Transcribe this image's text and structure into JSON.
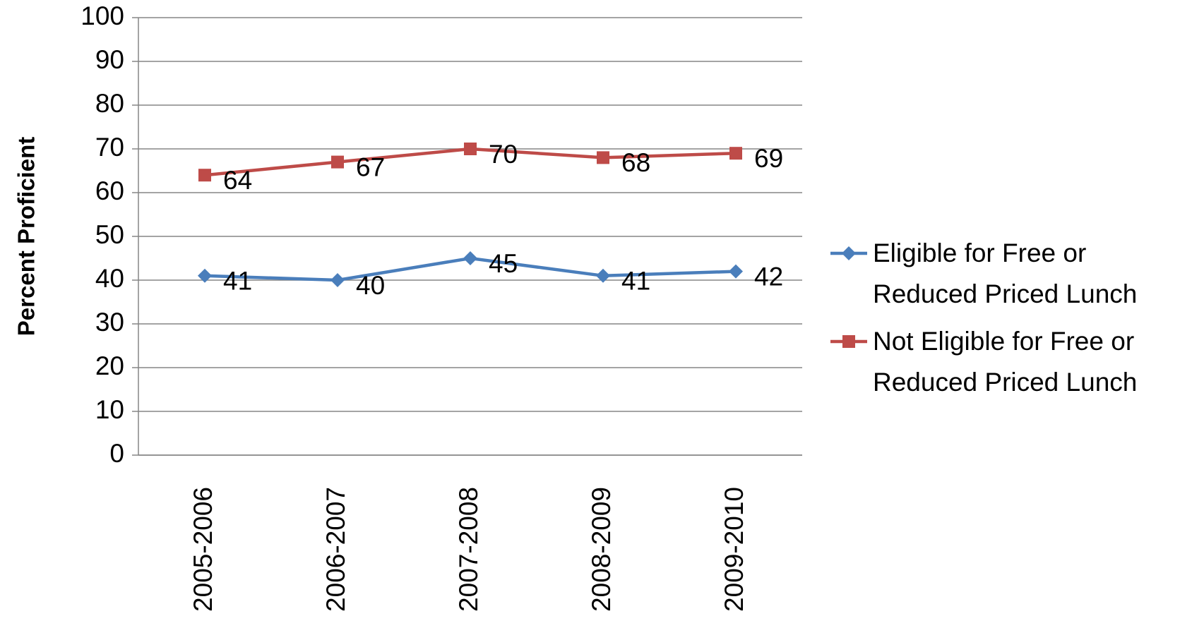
{
  "chart_data": {
    "type": "line",
    "y_label": "Percent Proficient",
    "categories": [
      "2005-2006",
      "2006-2007",
      "2007-2008",
      "2008-2009",
      "2009-2010"
    ],
    "series": [
      {
        "name": "Eligible for Free or Reduced Priced Lunch",
        "color": "#4a7ebb",
        "marker": "diamond",
        "values": [
          41,
          40,
          45,
          41,
          42
        ]
      },
      {
        "name": "Not Eligible for Free or Reduced Priced Lunch",
        "color": "#be4b48",
        "marker": "square",
        "values": [
          64,
          67,
          70,
          68,
          69
        ]
      }
    ],
    "ylim": [
      0,
      100
    ],
    "yticks": [
      0,
      10,
      20,
      30,
      40,
      50,
      60,
      70,
      80,
      90,
      100
    ],
    "grid": true,
    "legend": "right",
    "data_labels": true
  }
}
